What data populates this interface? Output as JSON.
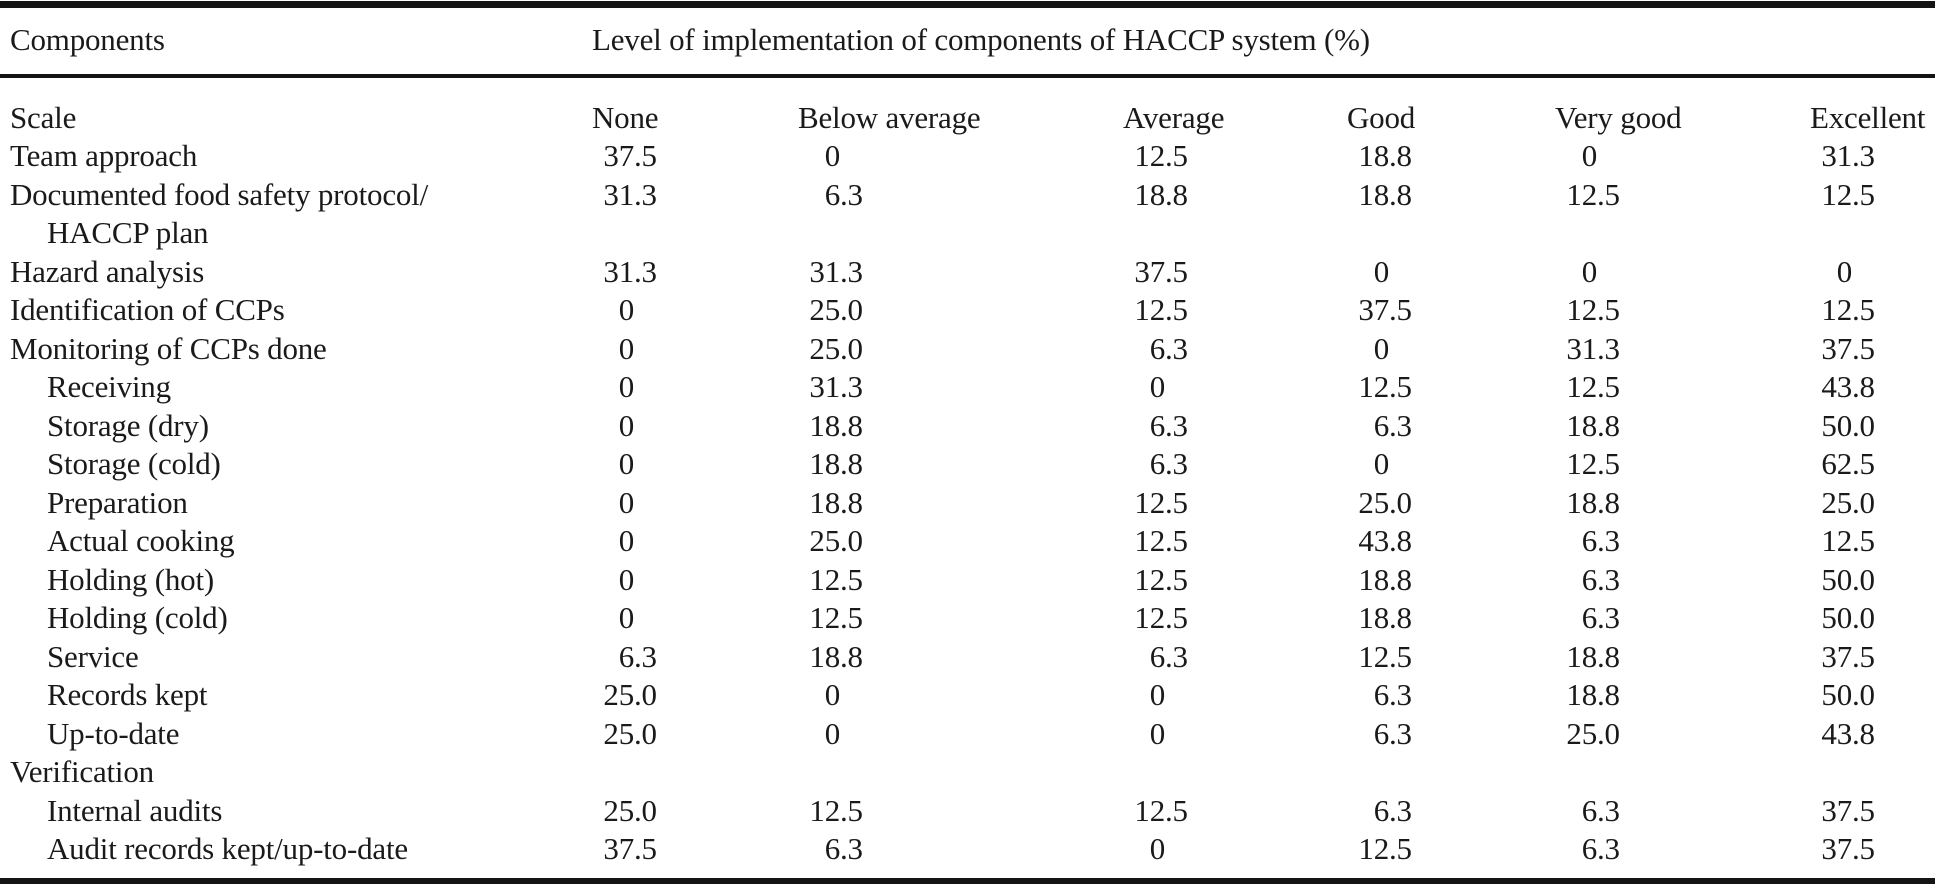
{
  "colors": {
    "background": "#ffffff",
    "text": "#1a1a1a",
    "rule": "#141414"
  },
  "table": {
    "components_header": "Components",
    "spanner_header": "Level of implementation of components of HACCP system (%)",
    "scale_label": "Scale",
    "scale_options": [
      "None",
      "Below average",
      "Average",
      "Good",
      "Very good",
      "Excellent"
    ],
    "rows": [
      {
        "label": "Team approach",
        "indent": 0,
        "values": [
          "37.5",
          "0",
          "12.5",
          "18.8",
          "0",
          "31.3"
        ]
      },
      {
        "label": "Documented food safety protocol/",
        "cont": "HACCP plan",
        "indent": 0,
        "values": [
          "31.3",
          "6.3",
          "18.8",
          "18.8",
          "12.5",
          "12.5"
        ]
      },
      {
        "label": "Hazard analysis",
        "indent": 0,
        "values": [
          "31.3",
          "31.3",
          "37.5",
          "0",
          "0",
          "0"
        ]
      },
      {
        "label": "Identification of CCPs",
        "indent": 0,
        "values": [
          "0",
          "25.0",
          "12.5",
          "37.5",
          "12.5",
          "12.5"
        ]
      },
      {
        "label": "Monitoring of CCPs done",
        "indent": 0,
        "values": [
          "0",
          "25.0",
          "6.3",
          "0",
          "31.3",
          "37.5"
        ]
      },
      {
        "label": "Receiving",
        "indent": 1,
        "values": [
          "0",
          "31.3",
          "0",
          "12.5",
          "12.5",
          "43.8"
        ]
      },
      {
        "label": "Storage (dry)",
        "indent": 1,
        "values": [
          "0",
          "18.8",
          "6.3",
          "6.3",
          "18.8",
          "50.0"
        ]
      },
      {
        "label": "Storage (cold)",
        "indent": 1,
        "values": [
          "0",
          "18.8",
          "6.3",
          "0",
          "12.5",
          "62.5"
        ]
      },
      {
        "label": "Preparation",
        "indent": 1,
        "values": [
          "0",
          "18.8",
          "12.5",
          "25.0",
          "18.8",
          "25.0"
        ]
      },
      {
        "label": "Actual cooking",
        "indent": 1,
        "values": [
          "0",
          "25.0",
          "12.5",
          "43.8",
          "6.3",
          "12.5"
        ]
      },
      {
        "label": "Holding (hot)",
        "indent": 1,
        "values": [
          "0",
          "12.5",
          "12.5",
          "18.8",
          "6.3",
          "50.0"
        ]
      },
      {
        "label": "Holding (cold)",
        "indent": 1,
        "values": [
          "0",
          "12.5",
          "12.5",
          "18.8",
          "6.3",
          "50.0"
        ]
      },
      {
        "label": "Service",
        "indent": 1,
        "values": [
          "6.3",
          "18.8",
          "6.3",
          "12.5",
          "18.8",
          "37.5"
        ]
      },
      {
        "label": "Records kept",
        "indent": 1,
        "values": [
          "25.0",
          "0",
          "0",
          "6.3",
          "18.8",
          "50.0"
        ]
      },
      {
        "label": "Up-to-date",
        "indent": 1,
        "values": [
          "25.0",
          "0",
          "0",
          "6.3",
          "25.0",
          "43.8"
        ]
      },
      {
        "label": "Verification",
        "indent": 0,
        "values": [
          "",
          "",
          "",
          "",
          "",
          ""
        ]
      },
      {
        "label": "Internal audits",
        "indent": 1,
        "values": [
          "25.0",
          "12.5",
          "12.5",
          "6.3",
          "6.3",
          "37.5"
        ]
      },
      {
        "label": "Audit records kept/up-to-date",
        "indent": 1,
        "values": [
          "37.5",
          "6.3",
          "0",
          "12.5",
          "6.3",
          "37.5"
        ]
      }
    ]
  }
}
